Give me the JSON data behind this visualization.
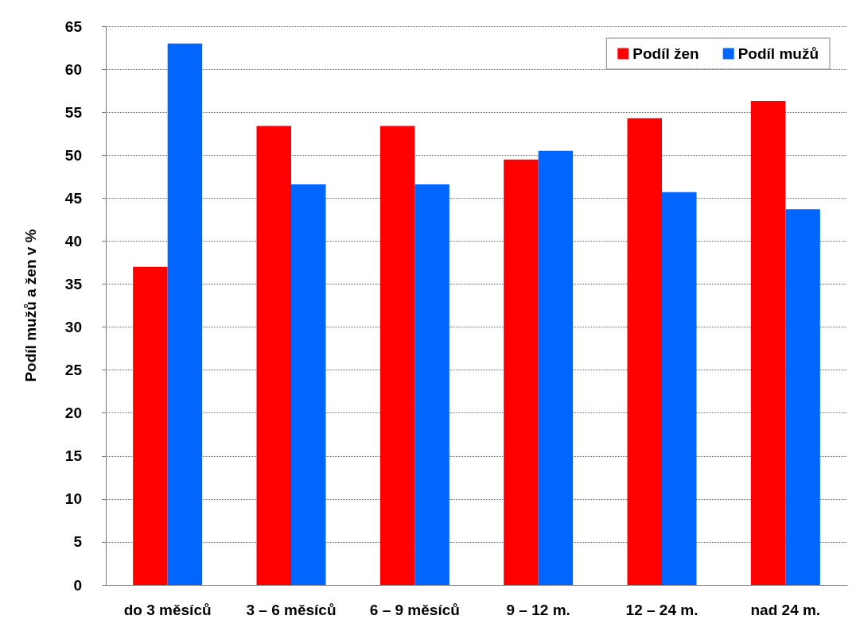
{
  "chart_data": {
    "type": "bar",
    "ylabel": "Podíl mužů a žen v %",
    "categories": [
      "do 3 měsíců",
      "3 – 6 měsíců",
      "6 – 9 měsíců",
      "9 – 12 m.",
      "12 – 24 m.",
      "nad 24 m."
    ],
    "series": [
      {
        "name": "Podíl žen",
        "color": "#ff0000",
        "values": [
          37.0,
          53.4,
          53.4,
          49.5,
          54.3,
          56.3
        ]
      },
      {
        "name": "Podíl mužů",
        "color": "#0066ff",
        "values": [
          63.0,
          46.6,
          46.6,
          50.5,
          45.7,
          43.7
        ]
      }
    ],
    "ylim": [
      0,
      65
    ],
    "yticks": [
      0,
      5,
      10,
      15,
      20,
      25,
      30,
      35,
      40,
      45,
      50,
      55,
      60,
      65
    ],
    "grid": "y",
    "legend": "top right"
  }
}
